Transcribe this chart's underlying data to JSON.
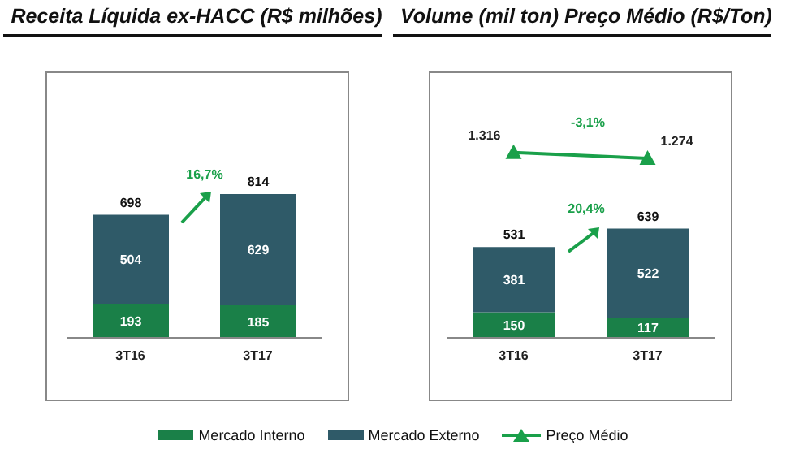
{
  "chart_data": [
    {
      "type": "bar",
      "title": "Receita Líquida ex-HACC (R$ milhões)",
      "categories": [
        "3T16",
        "3T17"
      ],
      "stacked": true,
      "data_labels": true,
      "totals": [
        "698",
        "814"
      ],
      "ylim": [
        0,
        1500
      ],
      "tick_labels": "x",
      "legend": "bottom",
      "annotations": [
        "16,7%"
      ],
      "series": [
        {
          "name": "Mercado Interno",
          "color": "#1a8048",
          "values": [
            193,
            185
          ]
        },
        {
          "name": "Mercado Externo",
          "color": "#2f5a68",
          "values": [
            504,
            629
          ]
        }
      ]
    },
    {
      "type": "bar",
      "title": "Volume (mil ton) Preço Médio (R$/Ton)",
      "categories": [
        "3T16",
        "3T17"
      ],
      "stacked": true,
      "data_labels": true,
      "totals": [
        "531",
        "639"
      ],
      "ylim": [
        0,
        1550
      ],
      "y2lim": [
        0,
        1880
      ],
      "tick_labels": "x",
      "legend": "bottom",
      "marker": "triangle",
      "annotations": [
        "-3,1%",
        "20,4%"
      ],
      "series": [
        {
          "name": "Mercado Interno",
          "color": "#1a8048",
          "values": [
            150,
            117
          ]
        },
        {
          "name": "Mercado Externo",
          "color": "#2f5a68",
          "values": [
            381,
            522
          ]
        },
        {
          "name": "Preço Médio",
          "type": "line",
          "axis": "y2",
          "color": "#1aa04a",
          "values": [
            1316,
            1274
          ],
          "value_labels": [
            "1.316",
            "1.274"
          ]
        }
      ]
    }
  ]
}
